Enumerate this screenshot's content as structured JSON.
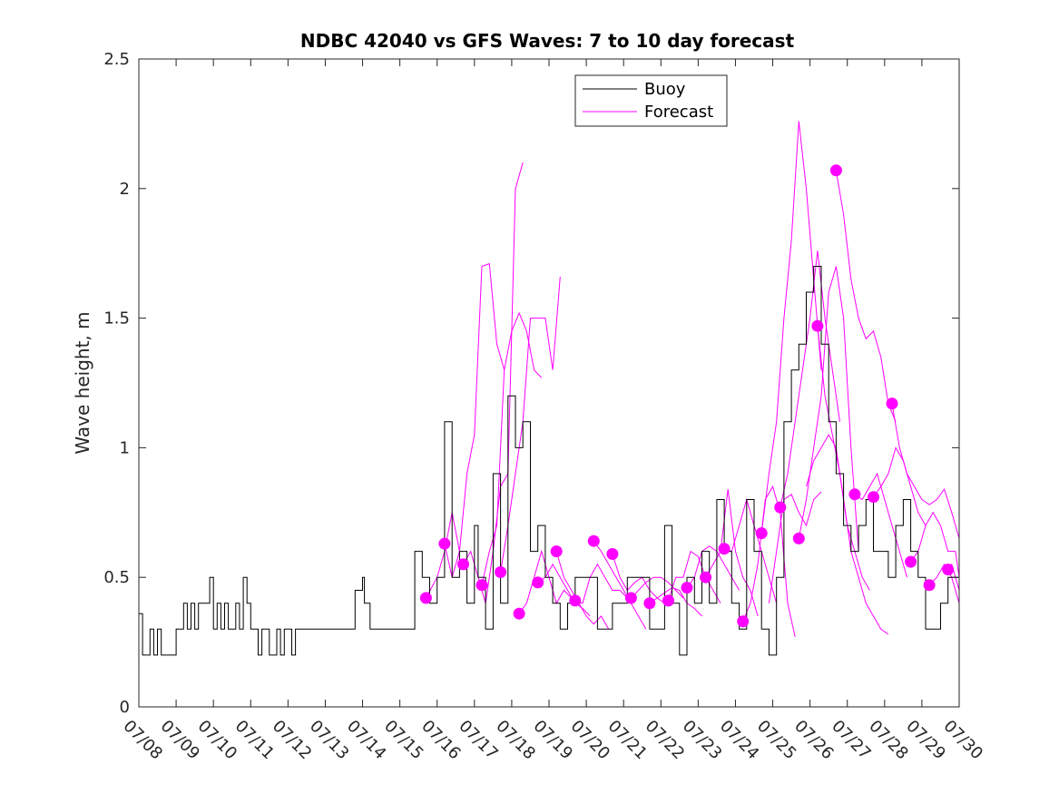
{
  "chart_data": {
    "type": "line",
    "title": "NDBC 42040 vs GFS Waves: 7 to 10 day forecast",
    "xlabel": "",
    "ylabel": "Wave height, m",
    "xlim": [
      "07/08",
      "07/30"
    ],
    "ylim": [
      0,
      2.5
    ],
    "yticks": [
      "0",
      "0.5",
      "1",
      "1.5",
      "2",
      "2.5"
    ],
    "xticks": [
      "07/08",
      "07/09",
      "07/10",
      "07/11",
      "07/12",
      "07/13",
      "07/14",
      "07/15",
      "07/16",
      "07/17",
      "07/18",
      "07/19",
      "07/20",
      "07/21",
      "07/22",
      "07/23",
      "07/24",
      "07/25",
      "07/26",
      "07/27",
      "07/28",
      "07/29",
      "07/30"
    ],
    "legend": {
      "placement": "top-center",
      "entries": [
        "Buoy",
        "Forecast"
      ]
    },
    "grid": false,
    "colors": {
      "buoy": "#000000",
      "forecast": "#ff00ff"
    },
    "buoy": {
      "name": "Buoy",
      "x": [
        0,
        0.1,
        0.2,
        0.3,
        0.4,
        0.5,
        0.6,
        0.7,
        0.8,
        0.9,
        1.0,
        1.1,
        1.2,
        1.3,
        1.4,
        1.5,
        1.6,
        1.7,
        1.8,
        1.9,
        2.0,
        2.1,
        2.2,
        2.3,
        2.4,
        2.5,
        2.6,
        2.7,
        2.8,
        2.9,
        3.0,
        3.1,
        3.2,
        3.3,
        3.4,
        3.5,
        3.6,
        3.7,
        3.8,
        3.9,
        4.0,
        4.1,
        4.2,
        4.3,
        4.4,
        4.5,
        4.6,
        4.7,
        4.8,
        4.9,
        5.0,
        5.2,
        5.4,
        5.6,
        5.8,
        6.0,
        6.05,
        6.2,
        6.4,
        6.6,
        6.8,
        7.0,
        7.2,
        7.4,
        7.6,
        7.8,
        8.0,
        8.2,
        8.4,
        8.6,
        8.8,
        9.0,
        9.1,
        9.3,
        9.5,
        9.7,
        9.9,
        10.1,
        10.3,
        10.5,
        10.7,
        10.9,
        11.1,
        11.3,
        11.5,
        11.7,
        11.9,
        12.1,
        12.3,
        12.5,
        12.7,
        12.9,
        13.1,
        13.3,
        13.5,
        13.7,
        13.9,
        14.1,
        14.3,
        14.5,
        14.7,
        14.9,
        15.1,
        15.3,
        15.5,
        15.7,
        15.9,
        16.1,
        16.3,
        16.5,
        16.7,
        16.9,
        17.1,
        17.3,
        17.5,
        17.7,
        17.9,
        18.1,
        18.3,
        18.5,
        18.7,
        18.9,
        19.1,
        19.3,
        19.5,
        19.7,
        19.9,
        20.1,
        20.3,
        20.5,
        20.7,
        20.9,
        21.1,
        21.3,
        21.5,
        21.7,
        21.9,
        22.0
      ],
      "y": [
        0.36,
        0.2,
        0.2,
        0.3,
        0.2,
        0.3,
        0.2,
        0.2,
        0.2,
        0.2,
        0.3,
        0.3,
        0.4,
        0.3,
        0.4,
        0.3,
        0.4,
        0.4,
        0.4,
        0.5,
        0.3,
        0.4,
        0.3,
        0.4,
        0.3,
        0.3,
        0.4,
        0.3,
        0.5,
        0.4,
        0.3,
        0.3,
        0.2,
        0.3,
        0.3,
        0.2,
        0.2,
        0.3,
        0.2,
        0.3,
        0.3,
        0.2,
        0.3,
        0.3,
        0.3,
        0.3,
        0.3,
        0.3,
        0.3,
        0.3,
        0.3,
        0.3,
        0.3,
        0.3,
        0.45,
        0.5,
        0.4,
        0.3,
        0.3,
        0.3,
        0.3,
        0.3,
        0.3,
        0.6,
        0.5,
        0.4,
        0.5,
        1.1,
        0.5,
        0.6,
        0.4,
        0.7,
        0.5,
        0.3,
        0.9,
        0.4,
        1.2,
        1.0,
        1.1,
        0.6,
        0.7,
        0.5,
        0.4,
        0.3,
        0.4,
        0.5,
        0.5,
        0.5,
        0.3,
        0.3,
        0.4,
        0.4,
        0.5,
        0.5,
        0.5,
        0.3,
        0.3,
        0.7,
        0.4,
        0.2,
        0.5,
        0.4,
        0.6,
        0.4,
        0.8,
        0.6,
        0.4,
        0.3,
        0.8,
        0.6,
        0.3,
        0.2,
        0.5,
        1.1,
        1.3,
        1.4,
        1.6,
        1.7,
        1.4,
        1.1,
        0.9,
        0.7,
        0.6,
        0.7,
        0.8,
        0.6,
        0.6,
        0.5,
        0.7,
        0.8,
        0.6,
        0.5,
        0.3,
        0.3,
        0.4,
        0.5,
        0.5,
        0.5
      ]
    },
    "forecasts": [
      {
        "x": [
          7.7,
          8.0,
          8.2,
          8.4,
          8.6
        ],
        "y": [
          0.42,
          0.5,
          0.6,
          0.75,
          0.6
        ]
      },
      {
        "x": [
          8.2,
          8.4,
          8.6,
          8.8,
          9.0,
          9.2,
          9.4,
          9.6,
          9.8
        ],
        "y": [
          0.63,
          0.5,
          0.6,
          0.9,
          1.05,
          1.7,
          1.71,
          1.4,
          1.3
        ]
      },
      {
        "x": [
          8.7,
          8.9,
          9.1,
          9.3,
          9.5,
          9.7,
          9.9,
          10.1,
          10.3
        ],
        "y": [
          0.55,
          0.6,
          0.5,
          0.4,
          0.6,
          0.85,
          0.9,
          2.0,
          2.1
        ]
      },
      {
        "x": [
          9.2,
          9.4,
          9.6,
          9.8,
          10.0,
          10.2,
          10.4,
          10.6,
          10.8
        ],
        "y": [
          0.47,
          0.6,
          0.7,
          1.3,
          1.45,
          1.52,
          1.45,
          1.3,
          1.27
        ]
      },
      {
        "x": [
          9.7,
          9.9,
          10.1,
          10.3,
          10.5,
          10.7,
          10.9,
          11.1,
          11.3
        ],
        "y": [
          0.52,
          0.7,
          0.9,
          1.1,
          1.5,
          1.5,
          1.5,
          1.3,
          1.66
        ]
      },
      {
        "x": [
          10.2,
          10.4,
          10.6,
          10.8,
          11.0,
          11.2,
          11.4,
          11.6
        ],
        "y": [
          0.36,
          0.4,
          0.5,
          0.6,
          0.5,
          0.4,
          0.45,
          0.42
        ]
      },
      {
        "x": [
          10.7,
          10.9,
          11.1,
          11.3,
          11.5,
          11.7,
          11.9,
          12.1
        ],
        "y": [
          0.48,
          0.5,
          0.55,
          0.5,
          0.45,
          0.4,
          0.38,
          0.35
        ]
      },
      {
        "x": [
          11.2,
          11.4,
          11.6,
          11.8,
          12.0,
          12.2,
          12.4,
          12.6
        ],
        "y": [
          0.6,
          0.5,
          0.45,
          0.4,
          0.35,
          0.32,
          0.35,
          0.3
        ]
      },
      {
        "x": [
          11.7,
          11.9,
          12.1,
          12.3,
          12.5,
          12.7,
          12.9,
          13.1
        ],
        "y": [
          0.41,
          0.4,
          0.5,
          0.55,
          0.5,
          0.45,
          0.45,
          0.42
        ]
      },
      {
        "x": [
          12.2,
          12.4,
          12.6,
          12.8,
          13.0,
          13.2,
          13.4,
          13.6
        ],
        "y": [
          0.64,
          0.6,
          0.55,
          0.5,
          0.45,
          0.4,
          0.35,
          0.3
        ]
      },
      {
        "x": [
          12.7,
          12.9,
          13.1,
          13.3,
          13.5,
          13.7,
          13.9,
          14.1
        ],
        "y": [
          0.59,
          0.5,
          0.45,
          0.48,
          0.5,
          0.45,
          0.42,
          0.4
        ]
      },
      {
        "x": [
          13.2,
          13.4,
          13.6,
          13.8,
          14.0,
          14.2,
          14.4,
          14.6
        ],
        "y": [
          0.42,
          0.45,
          0.48,
          0.5,
          0.5,
          0.48,
          0.45,
          0.42
        ]
      },
      {
        "x": [
          13.7,
          13.9,
          14.1,
          14.3,
          14.5,
          14.7,
          14.9,
          15.1
        ],
        "y": [
          0.4,
          0.42,
          0.44,
          0.46,
          0.45,
          0.4,
          0.38,
          0.35
        ]
      },
      {
        "x": [
          14.2,
          14.4,
          14.6,
          14.8,
          15.0,
          15.2,
          15.4,
          15.6
        ],
        "y": [
          0.41,
          0.5,
          0.5,
          0.6,
          0.58,
          0.5,
          0.45,
          0.4
        ]
      },
      {
        "x": [
          14.7,
          14.9,
          15.1,
          15.3,
          15.5,
          15.7,
          15.9,
          16.1
        ],
        "y": [
          0.46,
          0.5,
          0.6,
          0.62,
          0.6,
          0.55,
          0.5,
          0.45
        ]
      },
      {
        "x": [
          15.2,
          15.4,
          15.6,
          15.8,
          16.0,
          16.2,
          16.4,
          16.6
        ],
        "y": [
          0.5,
          0.55,
          0.6,
          0.84,
          0.6,
          0.5,
          0.45,
          0.35
        ]
      },
      {
        "x": [
          15.7,
          15.9,
          16.1,
          16.3,
          16.5,
          16.7,
          16.9,
          17.1
        ],
        "y": [
          0.61,
          0.6,
          0.7,
          0.8,
          0.7,
          0.6,
          0.5,
          0.4
        ]
      },
      {
        "x": [
          16.2,
          16.4,
          16.6,
          16.8,
          17.0,
          17.2,
          17.4,
          17.6
        ],
        "y": [
          0.33,
          0.4,
          0.55,
          0.8,
          0.85,
          0.75,
          0.4,
          0.27
        ]
      },
      {
        "x": [
          16.7,
          16.9,
          17.1,
          17.3,
          17.5,
          17.7,
          17.9,
          18.1,
          18.3
        ],
        "y": [
          0.67,
          0.9,
          1.1,
          1.5,
          1.8,
          2.26,
          2.0,
          1.65,
          1.3
        ]
      },
      {
        "x": [
          17.2,
          17.4,
          17.6,
          17.8,
          18.0,
          18.2,
          18.4,
          18.6,
          18.8
        ],
        "y": [
          0.77,
          0.9,
          1.1,
          1.3,
          1.5,
          1.76,
          1.5,
          1.3,
          1.1
        ]
      },
      {
        "x": [
          17.7,
          17.9,
          18.1,
          18.3,
          18.5,
          18.7,
          18.9,
          19.1,
          19.3
        ],
        "y": [
          0.65,
          0.8,
          1.0,
          1.2,
          1.6,
          1.7,
          1.5,
          1.0,
          0.6
        ]
      },
      {
        "x": [
          18.2,
          18.4,
          18.6,
          18.8,
          19.0,
          19.2,
          19.4,
          19.6
        ],
        "y": [
          1.47,
          1.2,
          1.05,
          0.9,
          0.7,
          0.6,
          0.5,
          0.45
        ]
      },
      {
        "x": [
          18.7,
          18.9,
          19.1,
          19.3,
          19.5,
          19.7,
          19.9,
          20.1,
          20.3
        ],
        "y": [
          2.07,
          1.9,
          1.65,
          1.5,
          1.42,
          1.45,
          1.35,
          1.17,
          1.1
        ]
      },
      {
        "x": [
          19.2,
          19.4,
          19.6,
          19.8,
          20.0,
          20.2,
          20.4,
          20.6
        ],
        "y": [
          0.82,
          0.8,
          0.85,
          0.9,
          0.8,
          0.7,
          0.6,
          0.5
        ]
      },
      {
        "x": [
          19.7,
          19.9,
          20.1,
          20.3,
          20.5,
          20.7,
          20.9,
          21.1
        ],
        "y": [
          0.81,
          0.85,
          0.9,
          1.0,
          0.95,
          0.85,
          0.75,
          0.7
        ]
      },
      {
        "x": [
          20.2,
          20.4,
          20.6,
          20.8,
          21.0,
          21.2,
          21.4,
          21.6,
          21.8,
          22.0
        ],
        "y": [
          1.17,
          1.0,
          0.9,
          0.85,
          0.8,
          0.78,
          0.8,
          0.84,
          0.75,
          0.65
        ]
      },
      {
        "x": [
          20.7,
          20.9,
          21.1,
          21.3,
          21.5,
          21.7,
          21.9,
          22.0
        ],
        "y": [
          0.56,
          0.6,
          0.7,
          0.75,
          0.7,
          0.6,
          0.6,
          0.5
        ]
      },
      {
        "x": [
          21.2,
          21.4,
          21.6,
          21.8,
          22.0
        ],
        "y": [
          0.47,
          0.5,
          0.55,
          0.5,
          0.4
        ]
      },
      {
        "x": [
          21.7,
          21.8,
          21.9,
          22.0
        ],
        "y": [
          0.53,
          0.55,
          0.5,
          0.45
        ]
      },
      {
        "x": [
          17.9,
          18.1,
          18.3,
          18.5,
          18.7,
          18.9,
          19.1,
          19.3,
          19.5,
          19.7,
          19.9,
          20.1
        ],
        "y": [
          0.85,
          0.95,
          1.0,
          1.05,
          1.0,
          0.8,
          0.6,
          0.5,
          0.4,
          0.35,
          0.3,
          0.28
        ]
      },
      {
        "x": [
          16.9,
          17.1,
          17.3,
          17.5,
          17.7,
          17.9,
          18.1,
          18.3
        ],
        "y": [
          0.4,
          0.6,
          0.8,
          0.82,
          0.75,
          0.7,
          0.8,
          0.83
        ]
      }
    ],
    "forecast_start_points": {
      "x": [
        7.7,
        8.2,
        8.7,
        9.2,
        9.7,
        10.2,
        10.7,
        11.2,
        11.7,
        12.2,
        12.7,
        13.2,
        13.7,
        14.2,
        14.7,
        15.2,
        15.7,
        16.2,
        16.7,
        17.2,
        17.7,
        18.2,
        18.7,
        19.2,
        19.7,
        20.2,
        20.7,
        21.2,
        21.7
      ],
      "y": [
        0.42,
        0.63,
        0.55,
        0.47,
        0.52,
        0.36,
        0.48,
        0.6,
        0.41,
        0.64,
        0.59,
        0.42,
        0.4,
        0.41,
        0.46,
        0.5,
        0.61,
        0.33,
        0.67,
        0.77,
        0.65,
        1.47,
        2.07,
        0.82,
        0.81,
        1.17,
        0.56,
        0.47,
        0.53
      ]
    }
  }
}
